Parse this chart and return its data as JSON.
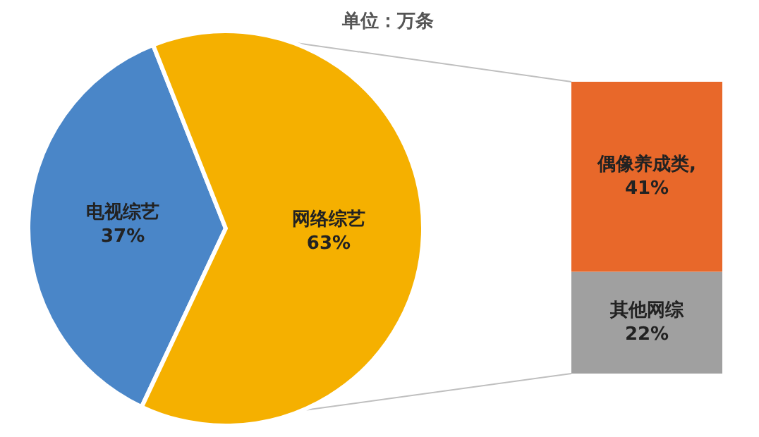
{
  "chart_data": [
    {
      "type": "pie",
      "title": "单位：万条",
      "categories": [
        "电视综艺",
        "网络综艺"
      ],
      "values": [
        37,
        63
      ],
      "colors": [
        "#4a86c8",
        "#f5b000"
      ],
      "value_labels": [
        "37%",
        "63%"
      ]
    },
    {
      "type": "bar",
      "stacked": true,
      "categories": [
        null
      ],
      "series": [
        {
          "name": "其他网综",
          "color": "#a0a0a0",
          "values": [
            22
          ],
          "value_labels": [
            "22%"
          ]
        },
        {
          "name": "偶像养成类,",
          "color": "#e8682a",
          "values": [
            41
          ],
          "value_labels": [
            "41%"
          ]
        }
      ]
    }
  ]
}
